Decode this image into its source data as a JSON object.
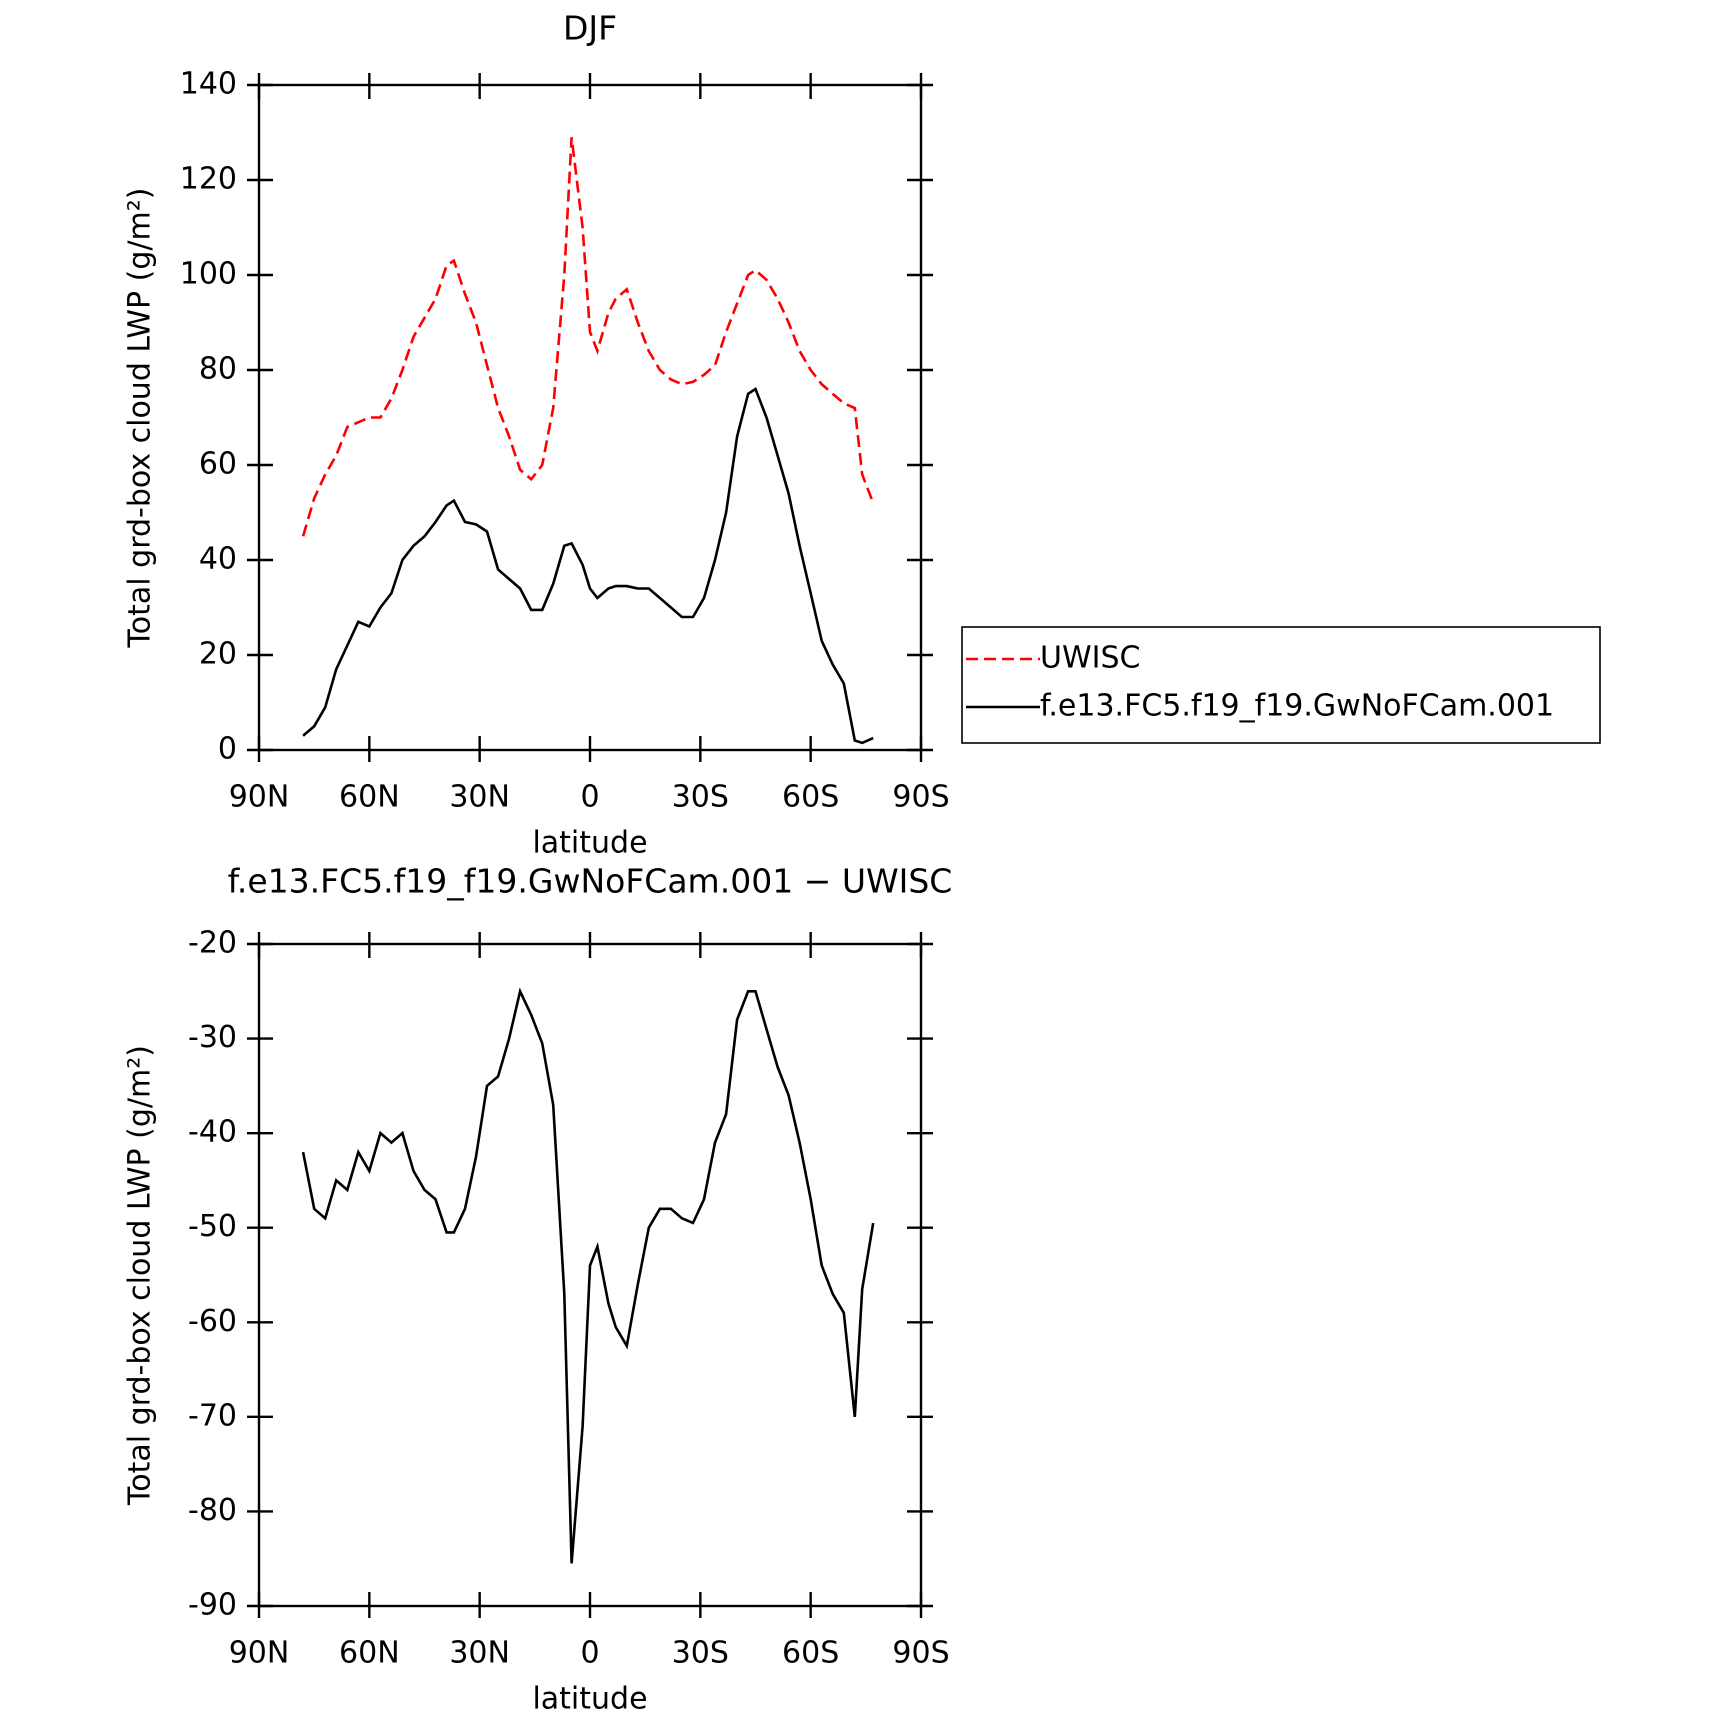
{
  "chart_data": [
    {
      "type": "line",
      "title": "DJF",
      "x_label": "latitude",
      "y_label": "Total grd-box cloud LWP (g/m²)",
      "x": [
        78,
        75,
        72,
        69,
        66,
        63,
        60,
        57,
        54,
        51,
        48,
        45,
        42,
        39,
        37,
        34,
        31,
        28,
        25,
        22,
        19,
        16,
        13,
        10,
        7,
        5,
        2,
        0,
        -2,
        -5,
        -7,
        -10,
        -13,
        -16,
        -19,
        -22,
        -25,
        -28,
        -31,
        -34,
        -37,
        -40,
        -43,
        -45,
        -48,
        -51,
        -54,
        -57,
        -60,
        -63,
        -66,
        -69,
        -72,
        -74,
        -77
      ],
      "series": [
        {
          "name": "UWISC",
          "color": "#ff0000",
          "dash": true,
          "values": [
            45,
            53,
            58,
            62,
            68,
            69,
            70,
            70,
            74,
            80,
            87,
            91,
            95,
            102,
            103,
            96,
            90,
            81,
            72,
            66,
            59,
            57,
            60,
            72,
            100,
            129,
            110,
            88,
            84,
            92,
            95,
            97,
            90,
            84,
            80,
            78,
            77,
            77.5,
            79,
            81,
            88,
            94,
            100,
            101,
            99,
            95,
            90,
            84,
            80,
            77,
            75,
            73,
            72,
            58,
            52
          ]
        },
        {
          "name": "f.e13.FC5.f19_f19.GwNoFCam.001",
          "color": "#000000",
          "dash": false,
          "values": [
            3,
            5,
            9,
            17,
            22,
            27,
            26,
            30,
            33,
            40,
            43,
            45,
            48,
            51.5,
            52.5,
            48,
            47.5,
            46,
            38,
            36,
            34,
            29.5,
            29.5,
            35,
            43,
            43.5,
            39,
            34,
            32,
            34,
            34.5,
            34.5,
            34,
            34,
            32,
            30,
            28,
            28,
            32,
            40,
            50,
            66,
            75,
            76,
            70,
            62,
            54,
            43,
            33,
            23,
            18,
            14,
            2,
            1.5,
            2.5
          ]
        }
      ],
      "xlim": [
        90,
        -90
      ],
      "xticks": [
        {
          "value": 90,
          "label": "90N"
        },
        {
          "value": 60,
          "label": "60N"
        },
        {
          "value": 30,
          "label": "30N"
        },
        0,
        {
          "value": -30,
          "label": "30S"
        },
        {
          "value": -60,
          "label": "60S"
        },
        {
          "value": -90,
          "label": "90S"
        }
      ],
      "ylim": [
        0,
        140
      ],
      "yticks": [
        0,
        20,
        40,
        60,
        80,
        100,
        120,
        140
      ],
      "legend": "outside-right"
    },
    {
      "type": "line",
      "title": "f.e13.FC5.f19_f19.GwNoFCam.001 − UWISC",
      "x_label": "latitude",
      "y_label": "Total grd-box cloud LWP (g/m²)",
      "x": [
        78,
        75,
        72,
        69,
        66,
        63,
        60,
        57,
        54,
        51,
        48,
        45,
        42,
        39,
        37,
        34,
        31,
        28,
        25,
        22,
        19,
        16,
        13,
        10,
        7,
        5,
        2,
        0,
        -2,
        -5,
        -7,
        -10,
        -13,
        -16,
        -19,
        -22,
        -25,
        -28,
        -31,
        -34,
        -37,
        -40,
        -43,
        -45,
        -48,
        -51,
        -54,
        -57,
        -60,
        -63,
        -66,
        -69,
        -72,
        -74,
        -77
      ],
      "series": [
        {
          "color": "#000000",
          "dash": false,
          "values": [
            -42,
            -48,
            -49,
            -45,
            -46,
            -42,
            -44,
            -40,
            -41,
            -40,
            -44,
            -46,
            -47,
            -50.5,
            -50.5,
            -48,
            -42.5,
            -35,
            -34,
            -30,
            -25,
            -27.5,
            -30.5,
            -37,
            -57,
            -85.5,
            -71,
            -54,
            -52,
            -58,
            -60.5,
            -62.5,
            -56,
            -50,
            -48,
            -48,
            -49,
            -49.5,
            -47,
            -41,
            -38,
            -28,
            -25,
            -25,
            -29,
            -33,
            -36,
            -41,
            -47,
            -54,
            -57,
            -59,
            -70,
            -56.5,
            -49.5
          ]
        }
      ],
      "xlim": [
        90,
        -90
      ],
      "xticks": [
        {
          "value": 90,
          "label": "90N"
        },
        {
          "value": 60,
          "label": "60N"
        },
        {
          "value": 30,
          "label": "30N"
        },
        0,
        {
          "value": -30,
          "label": "30S"
        },
        {
          "value": -60,
          "label": "60S"
        },
        {
          "value": -90,
          "label": "90S"
        }
      ],
      "ylim": [
        -90,
        -20
      ],
      "yticks": [
        -90,
        -80,
        -70,
        -60,
        -50,
        -40,
        -30,
        -20
      ]
    }
  ]
}
